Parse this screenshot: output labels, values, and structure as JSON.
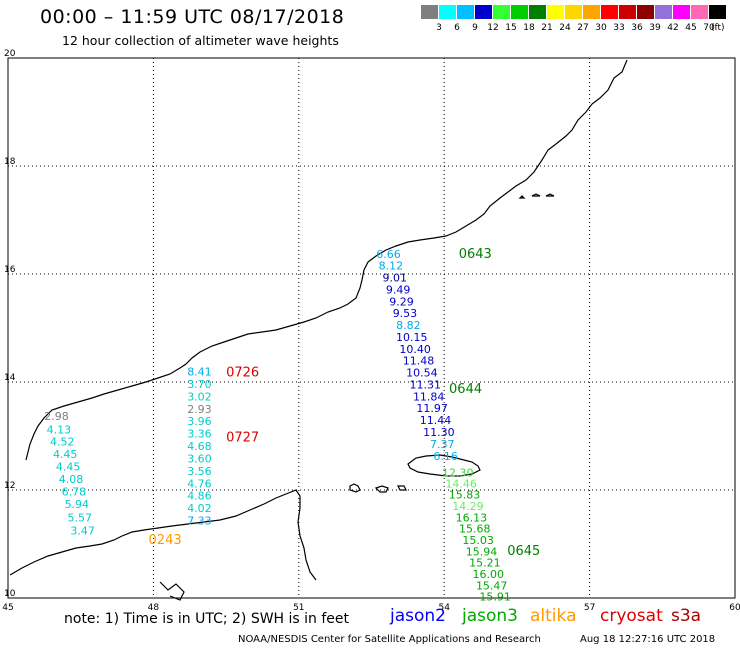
{
  "header": {
    "title": "00:00 – 11:59 UTC 08/17/2018",
    "subtitle": "12 hour collection of altimeter wave heights"
  },
  "legend": {
    "swatches": [
      {
        "color": "#7f7f7f",
        "label": "3"
      },
      {
        "color": "#00ffff",
        "label": "6"
      },
      {
        "color": "#00bfff",
        "label": "9"
      },
      {
        "color": "#0000cd",
        "label": "12"
      },
      {
        "color": "#33ff33",
        "label": "15"
      },
      {
        "color": "#00cc00",
        "label": "18"
      },
      {
        "color": "#008000",
        "label": "21"
      },
      {
        "color": "#ffff00",
        "label": "24"
      },
      {
        "color": "#ffd700",
        "label": "27"
      },
      {
        "color": "#ffa500",
        "label": "30"
      },
      {
        "color": "#ff0000",
        "label": "33"
      },
      {
        "color": "#cc0000",
        "label": "36"
      },
      {
        "color": "#8b0000",
        "label": "39"
      },
      {
        "color": "#9370db",
        "label": "42"
      },
      {
        "color": "#ff00ff",
        "label": "45"
      },
      {
        "color": "#ff69b4",
        "label": "70"
      },
      {
        "color": "#000000",
        "label": ""
      }
    ],
    "unit": "(ft)"
  },
  "map": {
    "lat_labels": [
      {
        "lat": 20,
        "text": "20"
      },
      {
        "lat": 18,
        "text": "18"
      },
      {
        "lat": 16,
        "text": "16"
      },
      {
        "lat": 14,
        "text": "14"
      },
      {
        "lat": 12,
        "text": "12"
      },
      {
        "lat": 10,
        "text": "10"
      }
    ],
    "lon_labels": [
      {
        "lon": 45,
        "text": "45"
      },
      {
        "lon": 48,
        "text": "48"
      },
      {
        "lon": 51,
        "text": "51"
      },
      {
        "lon": 54,
        "text": "54"
      },
      {
        "lon": 57,
        "text": "57"
      },
      {
        "lon": 60,
        "text": "60"
      }
    ],
    "time_labels": [
      {
        "text": "0643",
        "color": "#008000",
        "lon": 54.3,
        "lat": 16.3
      },
      {
        "text": "0726",
        "color": "#dd0000",
        "lon": 49.5,
        "lat": 14.1
      },
      {
        "text": "0644",
        "color": "#008000",
        "lon": 54.1,
        "lat": 13.8
      },
      {
        "text": "0727",
        "color": "#dd0000",
        "lon": 49.5,
        "lat": 12.9
      },
      {
        "text": "0645",
        "color": "#008000",
        "lon": 55.3,
        "lat": 10.8
      },
      {
        "text": "0243",
        "color": "#ff9900",
        "lon": 47.9,
        "lat": 11.0
      }
    ],
    "tracks": [
      {
        "name": "track-west",
        "points": [
          {
            "lon": 46.0,
            "lat": 13.3,
            "v": "2.98",
            "color": "#7f7f7f"
          },
          {
            "lon": 46.05,
            "lat": 13.05,
            "v": "4.13",
            "color": "#00cccc"
          },
          {
            "lon": 46.12,
            "lat": 12.82,
            "v": "4.52",
            "color": "#00cccc"
          },
          {
            "lon": 46.18,
            "lat": 12.59,
            "v": "4.45",
            "color": "#00cccc"
          },
          {
            "lon": 46.24,
            "lat": 12.36,
            "v": "4.45",
            "color": "#00cccc"
          },
          {
            "lon": 46.3,
            "lat": 12.13,
            "v": "4.08",
            "color": "#00cccc"
          },
          {
            "lon": 46.36,
            "lat": 11.9,
            "v": "6.78",
            "color": "#00cccc"
          },
          {
            "lon": 46.42,
            "lat": 11.67,
            "v": "5.94",
            "color": "#00cccc"
          },
          {
            "lon": 46.48,
            "lat": 11.42,
            "v": "5.57",
            "color": "#00cccc"
          },
          {
            "lon": 46.54,
            "lat": 11.18,
            "v": "3.47",
            "color": "#00cccc"
          }
        ]
      },
      {
        "name": "track-middle",
        "points": [
          {
            "lon": 48.95,
            "lat": 14.12,
            "v": "8.41",
            "color": "#00aaee"
          },
          {
            "lon": 48.95,
            "lat": 13.89,
            "v": "3.70",
            "color": "#00cccc"
          },
          {
            "lon": 48.95,
            "lat": 13.66,
            "v": "3.02",
            "color": "#00cccc"
          },
          {
            "lon": 48.95,
            "lat": 13.43,
            "v": "2.93",
            "color": "#7f7f7f"
          },
          {
            "lon": 48.95,
            "lat": 13.2,
            "v": "3.96",
            "color": "#00cccc"
          },
          {
            "lon": 48.95,
            "lat": 12.97,
            "v": "3.36",
            "color": "#00cccc"
          },
          {
            "lon": 48.95,
            "lat": 12.74,
            "v": "4.68",
            "color": "#00cccc"
          },
          {
            "lon": 48.95,
            "lat": 12.51,
            "v": "3.60",
            "color": "#00cccc"
          },
          {
            "lon": 48.95,
            "lat": 12.28,
            "v": "3.56",
            "color": "#00cccc"
          },
          {
            "lon": 48.95,
            "lat": 12.05,
            "v": "4.76",
            "color": "#00cccc"
          },
          {
            "lon": 48.95,
            "lat": 11.82,
            "v": "4.86",
            "color": "#00cccc"
          },
          {
            "lon": 48.95,
            "lat": 11.59,
            "v": "4.02",
            "color": "#00cccc"
          },
          {
            "lon": 48.95,
            "lat": 11.36,
            "v": "7.33",
            "color": "#00aaee"
          }
        ]
      },
      {
        "name": "track-east",
        "points": [
          {
            "lon": 52.85,
            "lat": 16.3,
            "v": "6.66",
            "color": "#00aaee"
          },
          {
            "lon": 52.9,
            "lat": 16.08,
            "v": "8.12",
            "color": "#00aaee"
          },
          {
            "lon": 52.98,
            "lat": 15.86,
            "v": "9.01",
            "color": "#000090"
          },
          {
            "lon": 53.05,
            "lat": 15.64,
            "v": "9.49",
            "color": "#0000cd"
          },
          {
            "lon": 53.12,
            "lat": 15.42,
            "v": "9.29",
            "color": "#0000cd"
          },
          {
            "lon": 53.19,
            "lat": 15.2,
            "v": "9.53",
            "color": "#0000cd"
          },
          {
            "lon": 53.26,
            "lat": 14.98,
            "v": "8.82",
            "color": "#00aaee"
          },
          {
            "lon": 53.33,
            "lat": 14.76,
            "v": "10.15",
            "color": "#0000cd"
          },
          {
            "lon": 53.4,
            "lat": 14.54,
            "v": "10.40",
            "color": "#0000cd"
          },
          {
            "lon": 53.47,
            "lat": 14.32,
            "v": "11.48",
            "color": "#0000cd"
          },
          {
            "lon": 53.54,
            "lat": 14.1,
            "v": "10.54",
            "color": "#0000cd"
          },
          {
            "lon": 53.61,
            "lat": 13.88,
            "v": "11.31",
            "color": "#0000cd"
          },
          {
            "lon": 53.68,
            "lat": 13.66,
            "v": "11.84",
            "color": "#0000cd"
          },
          {
            "lon": 53.75,
            "lat": 13.44,
            "v": "11.97",
            "color": "#0000cd"
          },
          {
            "lon": 53.82,
            "lat": 13.22,
            "v": "11.44",
            "color": "#0000cd"
          },
          {
            "lon": 53.89,
            "lat": 13.0,
            "v": "11.30",
            "color": "#0000cd"
          },
          {
            "lon": 53.96,
            "lat": 12.78,
            "v": "7.37",
            "color": "#00aaee"
          },
          {
            "lon": 54.03,
            "lat": 12.56,
            "v": "6.16",
            "color": "#00aaee"
          }
        ]
      },
      {
        "name": "track-south",
        "points": [
          {
            "lon": 54.28,
            "lat": 12.25,
            "v": "12.30",
            "color": "#33dd33"
          },
          {
            "lon": 54.35,
            "lat": 12.05,
            "v": "14.46",
            "color": "#66ee66"
          },
          {
            "lon": 54.42,
            "lat": 11.84,
            "v": "15.83",
            "color": "#00aa00"
          },
          {
            "lon": 54.49,
            "lat": 11.63,
            "v": "14.29",
            "color": "#66ee66"
          },
          {
            "lon": 54.56,
            "lat": 11.42,
            "v": "16.13",
            "color": "#00aa00"
          },
          {
            "lon": 54.63,
            "lat": 11.21,
            "v": "15.68",
            "color": "#00aa00"
          },
          {
            "lon": 54.7,
            "lat": 11.0,
            "v": "15.03",
            "color": "#00aa00"
          },
          {
            "lon": 54.77,
            "lat": 10.79,
            "v": "15.94",
            "color": "#00aa00"
          },
          {
            "lon": 54.84,
            "lat": 10.58,
            "v": "15.21",
            "color": "#00aa00"
          },
          {
            "lon": 54.91,
            "lat": 10.37,
            "v": "16.00",
            "color": "#00aa00"
          },
          {
            "lon": 54.98,
            "lat": 10.16,
            "v": "15.47",
            "color": "#00aa00"
          },
          {
            "lon": 55.05,
            "lat": 9.95,
            "v": "15.91",
            "color": "#00aa00"
          }
        ]
      }
    ]
  },
  "footer": {
    "note": "note: 1) Time is in UTC; 2) SWH is in feet",
    "satellites": [
      {
        "name": "jason2",
        "color": "#0000ff"
      },
      {
        "name": "jason3",
        "color": "#00aa00"
      },
      {
        "name": "altika",
        "color": "#ff9900"
      },
      {
        "name": "cryosat",
        "color": "#dd0000"
      },
      {
        "name": "s3a",
        "color": "#aa0000"
      }
    ],
    "credit": "NOAA/NESDIS Center for Satellite Applications and Research",
    "timestamp": "Aug 18 12:27:16 UTC 2018"
  }
}
